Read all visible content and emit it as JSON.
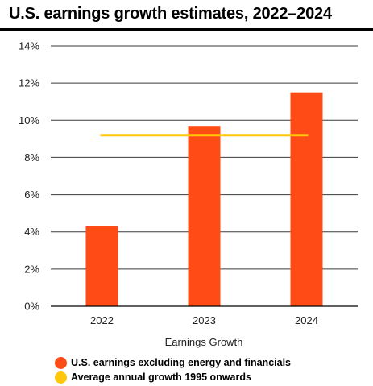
{
  "chart_data": {
    "type": "bar",
    "title": "U.S. earnings growth estimates, 2022–2024",
    "xlabel": "Earnings Growth",
    "ylabel": "",
    "categories": [
      "2022",
      "2023",
      "2024"
    ],
    "series": [
      {
        "name": "U.S. earnings excluding energy and financials",
        "values": [
          4.3,
          9.7,
          11.5
        ],
        "color": "#FF4B16"
      }
    ],
    "reference_line": {
      "name": "Average annual growth 1995 onwards",
      "value": 9.2,
      "color": "#FFC60A"
    },
    "ylim": [
      0,
      14
    ],
    "yticks": [
      "0%",
      "2%",
      "4%",
      "6%",
      "8%",
      "10%",
      "12%",
      "14%"
    ],
    "grid": true,
    "legend_position": "bottom-left"
  }
}
